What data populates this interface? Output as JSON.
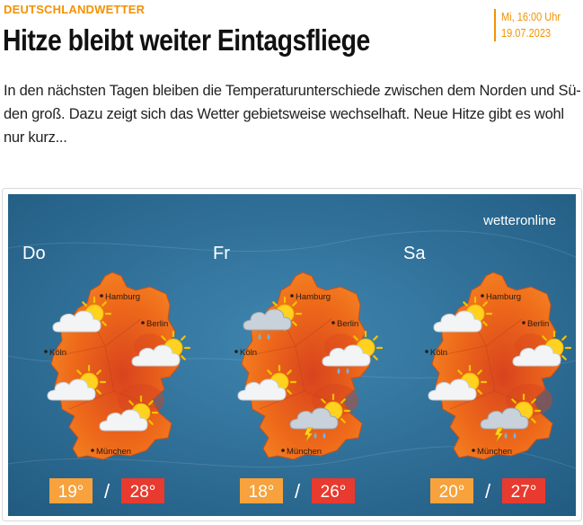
{
  "article": {
    "kicker": "DEUTSCHLANDWETTER",
    "title": "Hitze bleibt weiter Eintagsfliege",
    "time": "Mi, 16:00 Uhr",
    "date": "19.07.2023",
    "teaser_lines": [
      "In den nächsten Tagen bleiben die Temperaturunterschiede zwischen dem Norden und Sü-",
      "den groß. Dazu zeigt sich das Wetter gebietsweise wechselhaft. Neue Hitze gibt es wohl",
      "nur kurz..."
    ]
  },
  "image": {
    "logo": "wetteronline",
    "colors": {
      "background": "#2c6f98",
      "heat": "#ee6a1a",
      "heat_dark": "#d8431e",
      "min_box": "#f7a23c",
      "max_box": "#e83a2e"
    },
    "cities": {
      "hamburg": "Hamburg",
      "berlin": "Berlin",
      "koeln": "Köln",
      "muenchen": "München"
    },
    "days": [
      {
        "label": "Do",
        "min": "19°",
        "max": "28°",
        "icons": [
          "cloud-sun-icon",
          "cloud-sun-icon",
          "cloud-sun-icon",
          "cloud-sun-icon"
        ]
      },
      {
        "label": "Fr",
        "min": "18°",
        "max": "26°",
        "icons": [
          "cloud-rain-icon",
          "cloud-rain-sun-icon",
          "cloud-sun-icon",
          "cloud-storm-sun-icon"
        ]
      },
      {
        "label": "Sa",
        "min": "20°",
        "max": "27°",
        "icons": [
          "cloud-sun-icon",
          "cloud-sun-icon",
          "cloud-sun-icon",
          "cloud-storm-sun-icon"
        ]
      }
    ]
  }
}
